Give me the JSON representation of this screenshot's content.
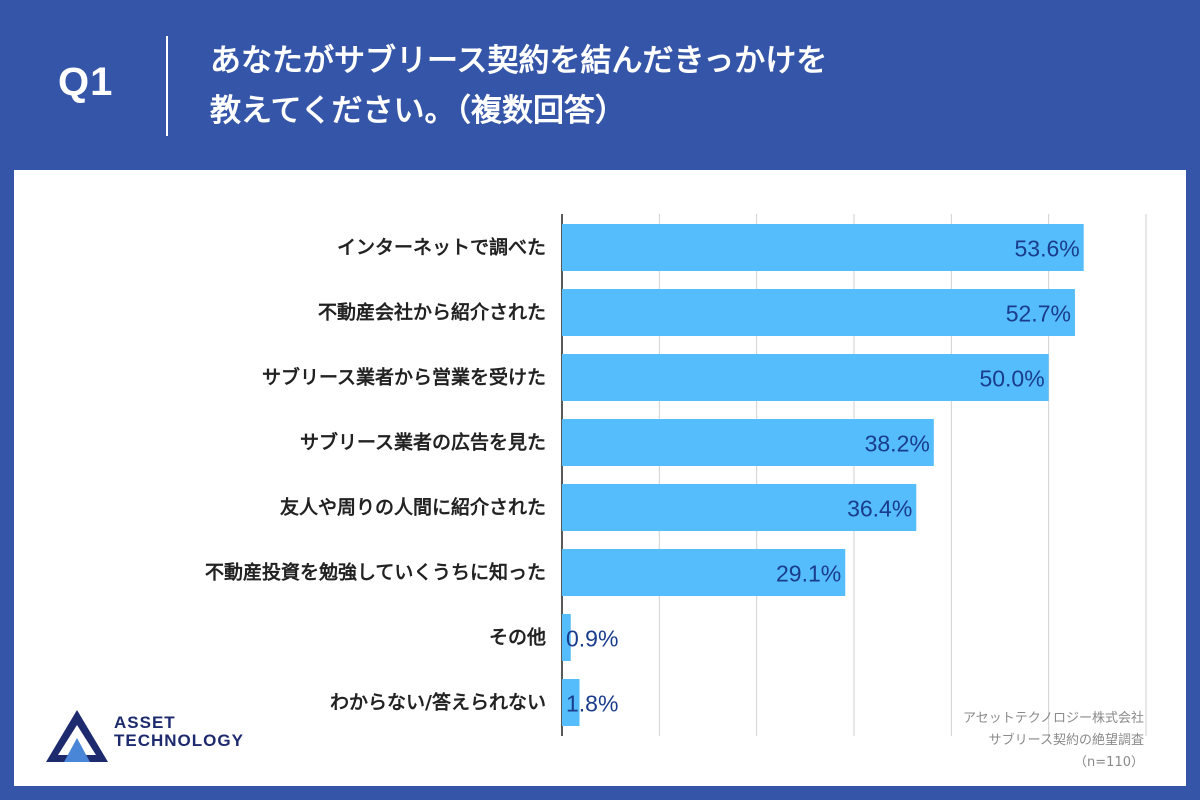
{
  "header": {
    "question_number": "Q1",
    "title_line1": "あなたがサブリース契約を結んだきっかけを",
    "title_line2": "教えてください。（複数回答）"
  },
  "chart_data": {
    "type": "bar",
    "orientation": "horizontal",
    "categories": [
      "インターネットで調べた",
      "不動産会社から紹介された",
      "サブリース業者から営業を受けた",
      "サブリース業者の広告を見た",
      "友人や周りの人間に紹介された",
      "不動産投資を勉強していくうちに知った",
      "その他",
      "わからない/答えられない"
    ],
    "values": [
      53.6,
      52.7,
      50.0,
      38.2,
      36.4,
      29.1,
      0.9,
      1.8
    ],
    "value_labels": [
      "53.6%",
      "52.7%",
      "50.0%",
      "38.2%",
      "36.4%",
      "29.1%",
      "0.9%",
      "1.8%"
    ],
    "xlim": [
      0,
      60
    ],
    "grid": true,
    "bar_color": "#55bdfb",
    "label_color": "#1a3c8c"
  },
  "footer": {
    "company": "アセットテクノロジー株式会社",
    "survey": "サブリース契約の絶望調査",
    "sample": "（n=110）"
  },
  "logo": {
    "line1": "ASSET",
    "line2": "TECHNOLOGY",
    "color": "#1d2a6e"
  },
  "colors": {
    "background": "#3556a8",
    "panel": "#ffffff",
    "gridline": "#d0d0d0"
  }
}
